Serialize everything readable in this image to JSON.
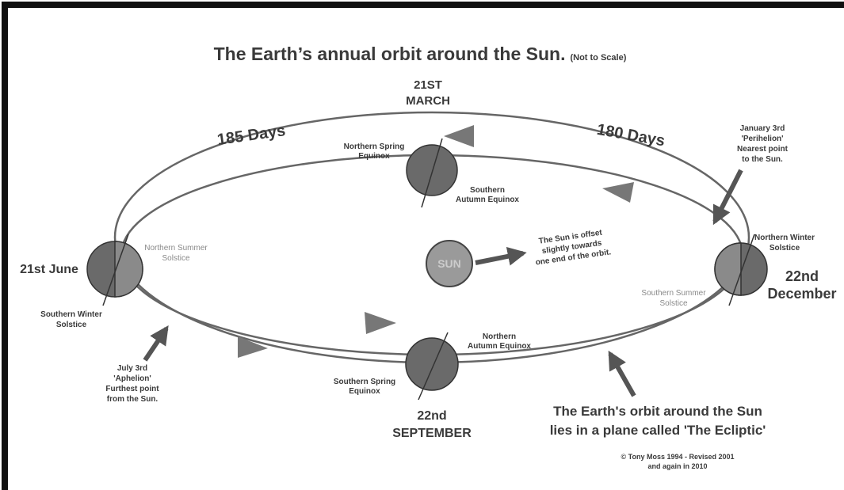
{
  "title": "The Earth’s annual orbit around the Sun.",
  "subtitle": "(Not to Scale)",
  "labels": {
    "march": [
      "21ST",
      "MARCH"
    ],
    "days_185": "185 Days",
    "days_180": "180 Days",
    "northern_spring": [
      "Northern Spring",
      "Equinox"
    ],
    "southern_autumn": [
      "Southern",
      "Autumn Equinox"
    ],
    "perihelion": [
      "January 3rd",
      "'Perihelion'",
      "Nearest point",
      "to the Sun."
    ],
    "june": "21st June",
    "northern_summer": [
      "Northern Summer",
      "Solstice"
    ],
    "southern_winter": [
      "Southern Winter",
      "Solstice"
    ],
    "sun": "SUN",
    "sun_note": [
      "The Sun is offset",
      "slightly towards",
      "one end of the orbit."
    ],
    "northern_winter": [
      "Northern Winter",
      "Solstice"
    ],
    "december": [
      "22nd",
      "December"
    ],
    "southern_summer": [
      "Southern Summer",
      "Solstice"
    ],
    "aphelion": [
      "July 3rd",
      "'Aphelion'",
      "Furthest point",
      "from the Sun."
    ],
    "northern_autumn": [
      "Northern",
      "Autumn Equinox"
    ],
    "southern_spring": [
      "Southern Spring",
      "Equinox"
    ],
    "september": [
      "22nd",
      "SEPTEMBER"
    ],
    "ecliptic": [
      "The Earth's orbit around the Sun",
      "lies in a plane called 'The Ecliptic'"
    ],
    "credit": [
      "© Tony Moss 1994 - Revised 2001",
      "and again in 2010"
    ]
  }
}
